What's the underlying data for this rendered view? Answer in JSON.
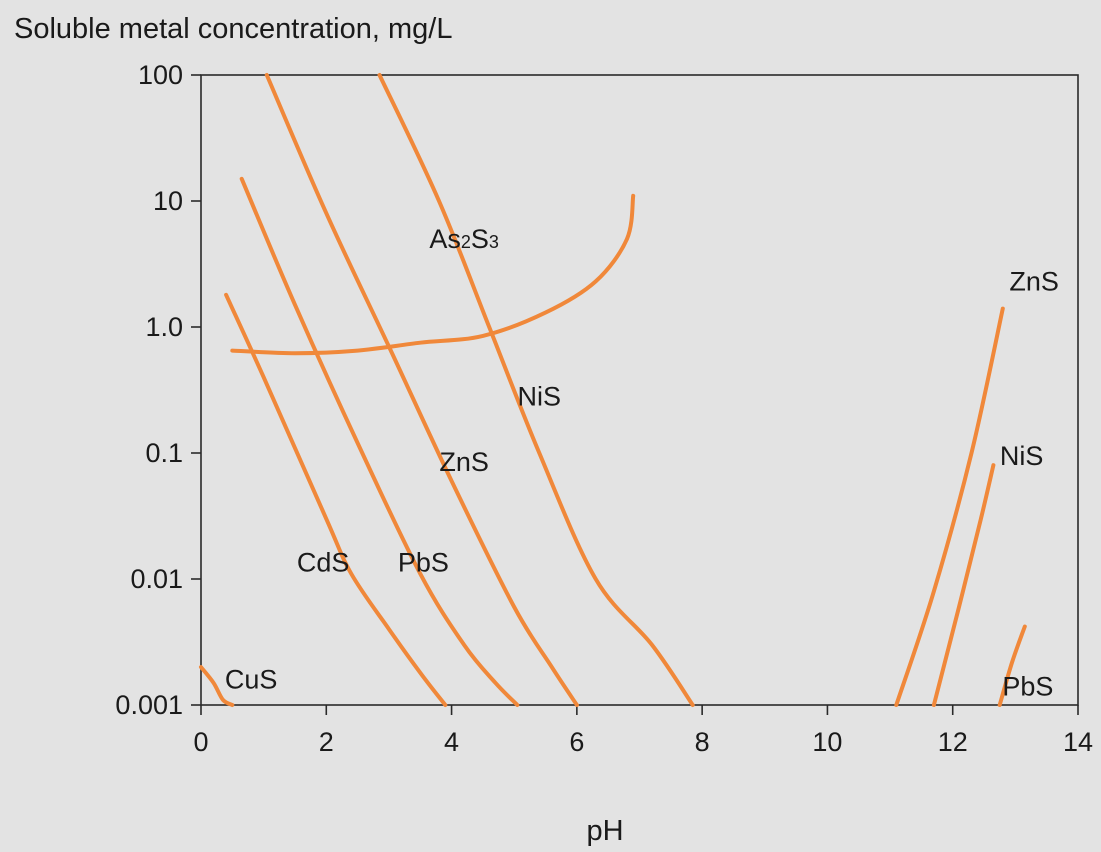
{
  "chart_data": {
    "type": "line",
    "title": "",
    "ylabel": "Soluble metal concentration, mg/L",
    "xlabel": "pH",
    "xlim": [
      0,
      14
    ],
    "ylim": [
      0.001,
      100
    ],
    "yscale": "log",
    "xticks": [
      0,
      2,
      4,
      6,
      8,
      10,
      12,
      14
    ],
    "xtick_labels": [
      "0",
      "2",
      "4",
      "6",
      "8",
      "10",
      "12",
      "14"
    ],
    "yticks": [
      100,
      10,
      1,
      0.1,
      0.01,
      0.001
    ],
    "ytick_labels": [
      "100",
      "10",
      "1.0",
      "0.1",
      "0.01",
      "0.001"
    ],
    "grid": false,
    "line_color": "#f0883a",
    "series": [
      {
        "name": "CuS",
        "points": [
          [
            0.0,
            0.002
          ],
          [
            0.2,
            0.0015
          ],
          [
            0.35,
            0.0011
          ],
          [
            0.5,
            0.001
          ]
        ]
      },
      {
        "name": "CdS",
        "points": [
          [
            0.4,
            1.8
          ],
          [
            1.0,
            0.4
          ],
          [
            2.0,
            0.03
          ],
          [
            2.4,
            0.011
          ],
          [
            3.0,
            0.004
          ],
          [
            3.5,
            0.0018
          ],
          [
            3.9,
            0.001
          ]
        ]
      },
      {
        "name": "PbS",
        "points": [
          [
            0.65,
            15
          ],
          [
            1.5,
            1.5
          ],
          [
            2.5,
            0.12
          ],
          [
            3.5,
            0.011
          ],
          [
            4.2,
            0.003
          ],
          [
            4.7,
            0.0015
          ],
          [
            5.05,
            0.001
          ]
        ]
      },
      {
        "name": "ZnS",
        "points": [
          [
            1.05,
            100
          ],
          [
            2.0,
            8
          ],
          [
            3.0,
            0.7
          ],
          [
            4.0,
            0.06
          ],
          [
            5.0,
            0.006
          ],
          [
            5.6,
            0.002
          ],
          [
            6.0,
            0.001
          ]
        ]
      },
      {
        "name": "NiS",
        "points": [
          [
            2.85,
            100
          ],
          [
            3.8,
            10
          ],
          [
            4.6,
            1.0
          ],
          [
            5.4,
            0.1
          ],
          [
            6.3,
            0.01
          ],
          [
            7.2,
            0.003
          ],
          [
            7.85,
            0.001
          ]
        ]
      },
      {
        "name": "As2S3",
        "points": [
          [
            0.5,
            0.65
          ],
          [
            1.5,
            0.62
          ],
          [
            2.5,
            0.65
          ],
          [
            3.5,
            0.75
          ],
          [
            4.5,
            0.85
          ],
          [
            5.5,
            1.3
          ],
          [
            6.3,
            2.3
          ],
          [
            6.8,
            5
          ],
          [
            6.9,
            11
          ]
        ]
      },
      {
        "name": "ZnS",
        "points": [
          [
            11.1,
            0.001
          ],
          [
            11.7,
            0.008
          ],
          [
            12.3,
            0.1
          ],
          [
            12.8,
            1.4
          ]
        ]
      },
      {
        "name": "NiS",
        "points": [
          [
            11.7,
            0.001
          ],
          [
            12.1,
            0.006
          ],
          [
            12.45,
            0.03
          ],
          [
            12.65,
            0.08
          ]
        ]
      },
      {
        "name": "PbS",
        "points": [
          [
            12.75,
            0.001
          ],
          [
            12.95,
            0.0022
          ],
          [
            13.15,
            0.0042
          ]
        ]
      }
    ],
    "annotations": [
      {
        "text": "CuS",
        "x": 0.8,
        "y": 0.0016
      },
      {
        "text": "CdS",
        "x": 1.95,
        "y": 0.0135
      },
      {
        "text": "PbS",
        "x": 3.55,
        "y": 0.0135
      },
      {
        "text": "ZnS",
        "x": 4.2,
        "y": 0.085
      },
      {
        "text": "NiS",
        "x": 5.4,
        "y": 0.28
      },
      {
        "text": "As2S3",
        "x": 4.2,
        "y": 5.0
      },
      {
        "text": "ZnS",
        "x": 13.3,
        "y": 2.3
      },
      {
        "text": "NiS",
        "x": 13.1,
        "y": 0.095
      },
      {
        "text": "PbS",
        "x": 13.2,
        "y": 0.0014
      }
    ]
  }
}
